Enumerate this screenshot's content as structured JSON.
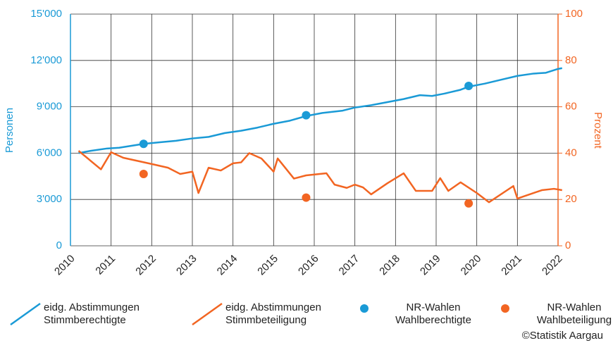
{
  "chart_data": {
    "type": "line",
    "ylabel": "Personen",
    "y2label": "Prozent",
    "xlim": [
      2010,
      2022
    ],
    "xticks": [
      2010,
      2011,
      2012,
      2013,
      2014,
      2015,
      2016,
      2017,
      2018,
      2019,
      2020,
      2021,
      2022
    ],
    "ylim": [
      0,
      15000
    ],
    "yticks": [
      0,
      {
        "value": 3000,
        "label": "3'000"
      },
      {
        "value": 6000,
        "label": "6'000"
      },
      {
        "value": 9000,
        "label": "9'000"
      },
      {
        "value": 12000,
        "label": "12'000"
      },
      {
        "value": 15000,
        "label": "15'000"
      }
    ],
    "y2lim": [
      0,
      100
    ],
    "y2ticks": [
      0,
      20,
      40,
      60,
      80,
      100
    ],
    "grid": true,
    "legend": "bottom",
    "credit": "©Statistik Aargau",
    "series": [
      {
        "name": "eidg. Abstimmungen Stimmberechtigte",
        "type": "line",
        "color": "#1a9ad6",
        "x": [
          2010.2,
          2010.5,
          2010.9,
          2011.2,
          2011.8,
          2012.2,
          2012.6,
          2013.0,
          2013.4,
          2013.8,
          2014.2,
          2014.6,
          2015.0,
          2015.4,
          2015.8,
          2016.2,
          2016.7,
          2017.0,
          2017.4,
          2017.8,
          2018.2,
          2018.6,
          2018.9,
          2019.2,
          2019.6,
          2019.8,
          2020.2,
          2020.6,
          2021.0,
          2021.4,
          2021.7,
          2022.0,
          2022.1
        ],
        "values": [
          6000,
          6150,
          6300,
          6350,
          6600,
          6700,
          6800,
          6950,
          7050,
          7300,
          7450,
          7650,
          7900,
          8100,
          8400,
          8600,
          8750,
          8950,
          9100,
          9300,
          9500,
          9750,
          9700,
          9850,
          10100,
          10300,
          10500,
          10750,
          11000,
          11150,
          11200,
          11450,
          11500
        ]
      },
      {
        "name": "eidg. Abstimmungen Stimmbeteiligung",
        "type": "line",
        "color": "#f26522",
        "axis": "y2",
        "x": [
          2010.2,
          2010.75,
          2011.0,
          2011.3,
          2012.0,
          2012.4,
          2012.7,
          2013.0,
          2013.15,
          2013.4,
          2013.7,
          2014.0,
          2014.2,
          2014.4,
          2014.7,
          2015.0,
          2015.1,
          2015.5,
          2015.8,
          2016.3,
          2016.5,
          2016.8,
          2017.0,
          2017.2,
          2017.4,
          2017.8,
          2018.2,
          2018.5,
          2018.9,
          2019.1,
          2019.3,
          2019.6,
          2020.0,
          2020.3,
          2020.9,
          2021.0,
          2021.2,
          2021.6,
          2021.9,
          2022.1
        ],
        "values": [
          41,
          33,
          40.4,
          38,
          35.3,
          33.7,
          31,
          32,
          22.8,
          33.7,
          32.5,
          35.6,
          36,
          40,
          37.7,
          32,
          37.7,
          29,
          30.4,
          31.3,
          26.4,
          25,
          26.4,
          25.2,
          22.2,
          27,
          31.3,
          23.7,
          23.7,
          29.2,
          23.7,
          27.4,
          22.8,
          18.8,
          25.8,
          20.4,
          21.6,
          24,
          24.6,
          24
        ]
      },
      {
        "name": "NR-Wahlen Wahlberechtigte",
        "type": "scatter",
        "color": "#1a9ad6",
        "x": [
          2011.8,
          2015.8,
          2019.8
        ],
        "values": [
          6600,
          8450,
          10350
        ]
      },
      {
        "name": "NR-Wahlen Wahlbeteiligung",
        "type": "scatter",
        "color": "#f26522",
        "axis": "y2",
        "x": [
          2011.8,
          2015.8,
          2019.8
        ],
        "values": [
          31,
          20.8,
          18.3
        ]
      }
    ]
  }
}
